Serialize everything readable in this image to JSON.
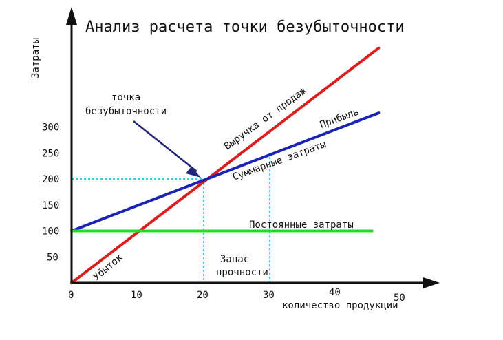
{
  "chart_data": {
    "type": "line",
    "title": "Анализ расчета точки безубыточности",
    "xlabel": "количество продукции",
    "ylabel": "Затраты",
    "xlim": [
      0,
      50
    ],
    "ylim": [
      0,
      350
    ],
    "x_ticks": [
      {
        "value": 0,
        "label": "0"
      },
      {
        "value": 10,
        "label": "10"
      },
      {
        "value": 20,
        "label": "20"
      },
      {
        "value": 30,
        "label": "30"
      },
      {
        "value": 40,
        "label": "40"
      },
      {
        "value": 50,
        "label": "50"
      }
    ],
    "y_ticks": [
      {
        "value": 50,
        "label": "50"
      },
      {
        "value": 100,
        "label": "100"
      },
      {
        "value": 150,
        "label": "150"
      },
      {
        "value": 200,
        "label": "200"
      },
      {
        "value": 250,
        "label": "250"
      },
      {
        "value": 300,
        "label": "300"
      }
    ],
    "grid": false,
    "legend": "none",
    "series": [
      {
        "key": "revenue",
        "name": "Выручка от продаж",
        "color": "#dd1c1c",
        "points": [
          [
            0,
            0
          ],
          [
            46.5,
            452
          ]
        ]
      },
      {
        "key": "total_costs",
        "name": "Суммарные затраты",
        "color": "#1a23b8",
        "points": [
          [
            0,
            100
          ],
          [
            46.5,
            327
          ]
        ]
      },
      {
        "key": "fixed_costs",
        "name": "Постоянные затраты",
        "color": "#22dd22",
        "points": [
          [
            0,
            100
          ],
          [
            45.5,
            100
          ]
        ]
      }
    ],
    "reference_lines": [
      {
        "key": "breakeven_h",
        "color": "#2fd0e8",
        "points": [
          [
            0,
            200
          ],
          [
            20,
            200
          ]
        ]
      },
      {
        "key": "breakeven_v",
        "color": "#2fd0e8",
        "points": [
          [
            20,
            200
          ],
          [
            20,
            0
          ]
        ]
      },
      {
        "key": "safety_v",
        "color": "#2fd0e8",
        "points": [
          [
            30,
            250
          ],
          [
            30,
            0
          ]
        ]
      }
    ],
    "annotations": {
      "breakeven_title": {
        "line1": "точка",
        "line2": "безубыточности",
        "target": [
          20,
          200
        ],
        "color": "#22237a"
      },
      "revenue_label": "Выручка от продаж",
      "total_costs_label": "Суммарные затраты",
      "fixed_costs_label": "Постоянные затраты",
      "profit": "Прибыль",
      "loss": "Убыток",
      "safety_line1": "Запас",
      "safety_line2": "прочности"
    }
  }
}
